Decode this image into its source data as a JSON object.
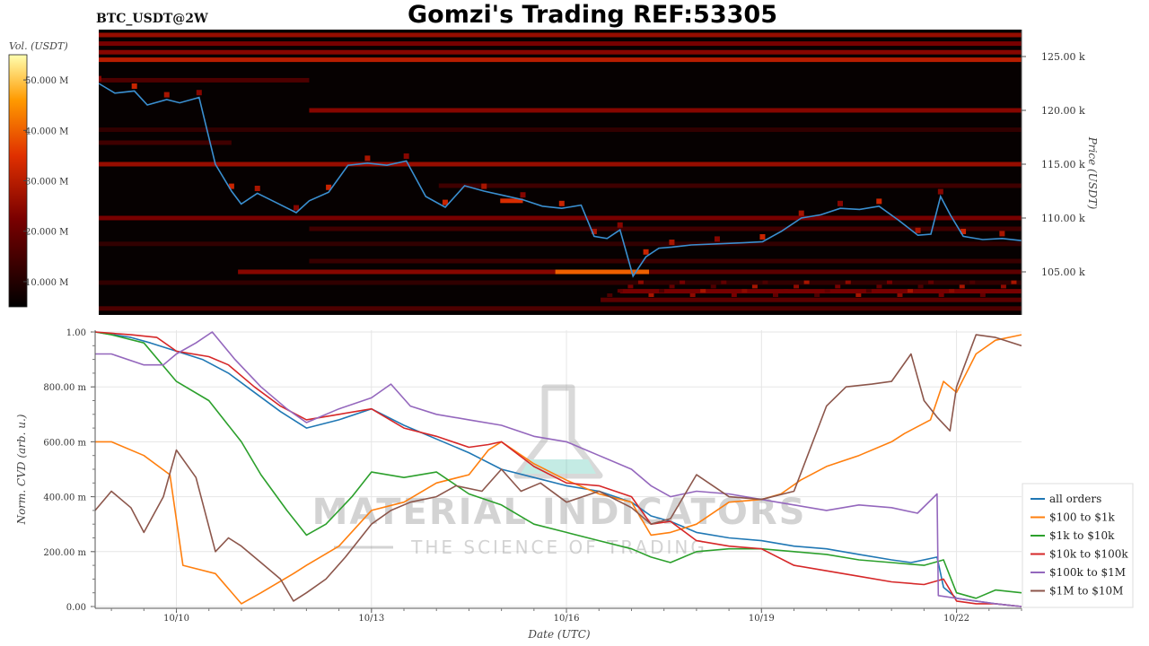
{
  "header": {
    "symbol": "BTC_USDT@2W",
    "title": "Gomzi's Trading REF:53305"
  },
  "watermark": {
    "line1": "MATERIAL INDICATORS",
    "line2": "THE SCIENCE OF TRADING"
  },
  "colors": {
    "heatmap_bg": "#060101",
    "price_line": "#3a8fd0",
    "grid": "#e6e6e6"
  },
  "chart_data": [
    {
      "type": "heatmap",
      "colorbar": {
        "label": "Vol. (USDT)",
        "ticks": [
          "50.000 M",
          "40.000 M",
          "30.000 M",
          "20.000 M",
          "10.000 M"
        ],
        "tick_values": [
          50,
          40,
          30,
          20,
          10
        ],
        "range": [
          5,
          55
        ]
      },
      "yaxis": {
        "label": "Price (USDT)",
        "side": "right",
        "range": [
          101000,
          127500
        ],
        "ticks": [
          "125.00 k",
          "120.00 k",
          "115.00 k",
          "110.00 k",
          "105.00 k"
        ],
        "tick_values": [
          125000,
          120000,
          115000,
          110000,
          105000
        ]
      },
      "xrange_days": [
        8.75,
        23.0
      ],
      "price_series": {
        "name": "BTC price",
        "x": [
          8.75,
          9.0,
          9.3,
          9.5,
          9.8,
          10.0,
          10.3,
          10.55,
          10.8,
          10.95,
          11.2,
          11.5,
          11.8,
          12.0,
          12.3,
          12.6,
          12.9,
          13.2,
          13.5,
          13.8,
          14.1,
          14.4,
          14.7,
          15.0,
          15.3,
          15.6,
          15.9,
          16.2,
          16.4,
          16.6,
          16.8,
          17.0,
          17.2,
          17.4,
          17.6,
          17.9,
          18.3,
          18.7,
          19.0,
          19.3,
          19.6,
          19.9,
          20.2,
          20.5,
          20.8,
          21.1,
          21.4,
          21.6,
          21.75,
          21.9,
          22.1,
          22.4,
          22.7,
          23.0
        ],
        "y": [
          122500,
          121600,
          121800,
          120500,
          121000,
          120700,
          121200,
          115000,
          112500,
          111300,
          112300,
          111400,
          110500,
          111600,
          112400,
          114900,
          115100,
          114900,
          115300,
          112000,
          111000,
          113000,
          112500,
          112100,
          111700,
          111100,
          110900,
          111200,
          108300,
          108100,
          108900,
          104600,
          106400,
          107200,
          107300,
          107500,
          107600,
          107700,
          107800,
          108800,
          110000,
          110300,
          110900,
          110800,
          111100,
          109800,
          108400,
          108500,
          112000,
          110300,
          108300,
          108000,
          108100,
          107900
        ]
      },
      "liquidity_bands": [
        {
          "price": 127000,
          "x0": 8.75,
          "x1": 23.0,
          "intensity": 26
        },
        {
          "price": 126200,
          "x0": 8.75,
          "x1": 23.0,
          "intensity": 22
        },
        {
          "price": 125400,
          "x0": 8.75,
          "x1": 23.0,
          "intensity": 24
        },
        {
          "price": 124700,
          "x0": 8.75,
          "x1": 23.0,
          "intensity": 30
        },
        {
          "price": 122800,
          "x0": 8.75,
          "x1": 12.0,
          "intensity": 16
        },
        {
          "price": 120000,
          "x0": 12.0,
          "x1": 23.0,
          "intensity": 24
        },
        {
          "price": 118200,
          "x0": 8.75,
          "x1": 23.0,
          "intensity": 12
        },
        {
          "price": 117000,
          "x0": 8.75,
          "x1": 10.8,
          "intensity": 14
        },
        {
          "price": 115000,
          "x0": 8.75,
          "x1": 23.0,
          "intensity": 26
        },
        {
          "price": 113000,
          "x0": 14.0,
          "x1": 23.0,
          "intensity": 14
        },
        {
          "price": 110000,
          "x0": 8.75,
          "x1": 23.0,
          "intensity": 22
        },
        {
          "price": 109000,
          "x0": 12.0,
          "x1": 23.0,
          "intensity": 14
        },
        {
          "price": 107600,
          "x0": 8.75,
          "x1": 23.0,
          "intensity": 12
        },
        {
          "price": 106000,
          "x0": 12.0,
          "x1": 23.0,
          "intensity": 13
        },
        {
          "price": 105000,
          "x0": 10.9,
          "x1": 15.8,
          "intensity": 24
        },
        {
          "price": 105000,
          "x0": 15.8,
          "x1": 17.25,
          "intensity": 40
        },
        {
          "price": 105000,
          "x0": 17.25,
          "x1": 23.0,
          "intensity": 18
        },
        {
          "price": 104000,
          "x0": 8.75,
          "x1": 23.0,
          "intensity": 12
        },
        {
          "price": 103200,
          "x0": 16.8,
          "x1": 23.0,
          "intensity": 22
        },
        {
          "price": 102400,
          "x0": 16.5,
          "x1": 23.0,
          "intensity": 18
        },
        {
          "price": 101600,
          "x0": 8.75,
          "x1": 23.0,
          "intensity": 16
        },
        {
          "price": 111600,
          "x0": 14.95,
          "x1": 15.3,
          "intensity": 34
        }
      ]
    },
    {
      "type": "line",
      "xlabel": "Date (UTC)",
      "ylabel": "Norm. CVD (arb. u.)",
      "xrange_days": [
        8.75,
        23.0
      ],
      "xticks": [
        "10/10",
        "10/13",
        "10/16",
        "10/19",
        "10/22"
      ],
      "xtick_values": [
        10,
        13,
        16,
        19,
        22
      ],
      "ylim": [
        0,
        1
      ],
      "yticks": [
        "1.00",
        "800.00 m",
        "600.00 m",
        "400.00 m",
        "200.00 m",
        "0.00"
      ],
      "ytick_values": [
        1.0,
        0.8,
        0.6,
        0.4,
        0.2,
        0.0
      ],
      "grid": true,
      "legend_position": "right",
      "series": [
        {
          "name": "all orders",
          "color": "#1f77b4",
          "x": [
            8.75,
            9.3,
            9.6,
            10.0,
            10.4,
            10.8,
            11.2,
            11.6,
            12.0,
            12.5,
            13.0,
            13.5,
            14.0,
            14.5,
            15.0,
            15.5,
            16.0,
            16.5,
            17.0,
            17.3,
            17.6,
            18.0,
            18.5,
            19.0,
            19.5,
            20.0,
            20.5,
            21.0,
            21.3,
            21.7,
            21.8,
            22.0,
            22.3,
            22.6,
            23.0
          ],
          "y": [
            1.0,
            0.98,
            0.96,
            0.93,
            0.9,
            0.85,
            0.78,
            0.71,
            0.65,
            0.68,
            0.72,
            0.66,
            0.61,
            0.56,
            0.5,
            0.47,
            0.44,
            0.42,
            0.38,
            0.33,
            0.31,
            0.27,
            0.25,
            0.24,
            0.22,
            0.21,
            0.19,
            0.17,
            0.16,
            0.18,
            0.07,
            0.03,
            0.02,
            0.01,
            0.0
          ]
        },
        {
          "name": "$100 to $1k",
          "color": "#ff7f0e",
          "x": [
            8.75,
            9.0,
            9.5,
            9.9,
            10.1,
            10.6,
            11.0,
            11.3,
            11.8,
            12.0,
            12.5,
            13.0,
            13.5,
            14.0,
            14.5,
            14.8,
            15.0,
            15.5,
            16.0,
            16.5,
            17.0,
            17.3,
            17.6,
            18.0,
            18.5,
            19.0,
            19.3,
            19.6,
            20.0,
            20.5,
            21.0,
            21.2,
            21.6,
            21.8,
            22.0,
            22.3,
            22.6,
            23.0
          ],
          "y": [
            0.6,
            0.6,
            0.55,
            0.48,
            0.15,
            0.12,
            0.01,
            0.05,
            0.12,
            0.15,
            0.22,
            0.35,
            0.38,
            0.45,
            0.48,
            0.57,
            0.6,
            0.52,
            0.46,
            0.41,
            0.38,
            0.26,
            0.27,
            0.3,
            0.38,
            0.39,
            0.41,
            0.46,
            0.51,
            0.55,
            0.6,
            0.63,
            0.68,
            0.82,
            0.78,
            0.92,
            0.97,
            0.99
          ]
        },
        {
          "name": "$1k to $10k",
          "color": "#2ca02c",
          "x": [
            8.75,
            9.0,
            9.5,
            10.0,
            10.5,
            11.0,
            11.3,
            11.7,
            12.0,
            12.3,
            12.7,
            13.0,
            13.5,
            14.0,
            14.5,
            15.0,
            15.5,
            16.0,
            16.5,
            17.0,
            17.3,
            17.6,
            18.0,
            18.5,
            19.0,
            19.5,
            20.0,
            20.5,
            21.0,
            21.5,
            21.8,
            22.0,
            22.3,
            22.6,
            23.0
          ],
          "y": [
            1.0,
            0.99,
            0.96,
            0.82,
            0.75,
            0.6,
            0.48,
            0.35,
            0.26,
            0.3,
            0.4,
            0.49,
            0.47,
            0.49,
            0.41,
            0.37,
            0.3,
            0.27,
            0.24,
            0.21,
            0.18,
            0.16,
            0.2,
            0.21,
            0.21,
            0.2,
            0.19,
            0.17,
            0.16,
            0.15,
            0.17,
            0.05,
            0.03,
            0.06,
            0.05
          ]
        },
        {
          "name": "$10k to $100k",
          "color": "#d62728",
          "x": [
            8.75,
            9.3,
            9.7,
            10.0,
            10.5,
            10.8,
            11.2,
            11.6,
            12.0,
            12.5,
            13.0,
            13.5,
            14.0,
            14.5,
            14.8,
            15.0,
            15.5,
            16.0,
            16.5,
            17.0,
            17.3,
            17.6,
            18.0,
            18.5,
            19.0,
            19.5,
            20.0,
            20.5,
            21.0,
            21.5,
            21.8,
            22.0,
            22.3,
            22.6,
            23.0
          ],
          "y": [
            1.0,
            0.99,
            0.98,
            0.93,
            0.91,
            0.88,
            0.8,
            0.73,
            0.68,
            0.7,
            0.72,
            0.65,
            0.62,
            0.58,
            0.59,
            0.6,
            0.51,
            0.45,
            0.44,
            0.4,
            0.3,
            0.31,
            0.24,
            0.22,
            0.21,
            0.15,
            0.13,
            0.11,
            0.09,
            0.08,
            0.1,
            0.02,
            0.01,
            0.01,
            0.0
          ]
        },
        {
          "name": "$100k to $1M",
          "color": "#9467bd",
          "x": [
            8.75,
            9.0,
            9.5,
            9.8,
            10.0,
            10.3,
            10.55,
            10.9,
            11.3,
            11.7,
            12.0,
            12.5,
            13.0,
            13.3,
            13.6,
            14.0,
            14.5,
            15.0,
            15.5,
            16.0,
            16.5,
            17.0,
            17.3,
            17.6,
            18.0,
            18.5,
            19.0,
            19.5,
            20.0,
            20.5,
            21.0,
            21.4,
            21.7,
            21.72,
            22.0,
            22.3,
            22.6,
            23.0
          ],
          "y": [
            0.92,
            0.92,
            0.88,
            0.88,
            0.92,
            0.96,
            1.0,
            0.9,
            0.8,
            0.72,
            0.67,
            0.72,
            0.76,
            0.81,
            0.73,
            0.7,
            0.68,
            0.66,
            0.62,
            0.6,
            0.55,
            0.5,
            0.44,
            0.4,
            0.42,
            0.41,
            0.39,
            0.37,
            0.35,
            0.37,
            0.36,
            0.34,
            0.41,
            0.04,
            0.03,
            0.02,
            0.01,
            0.0
          ]
        },
        {
          "name": "$1M to $10M",
          "color": "#8c564b",
          "x": [
            8.75,
            9.0,
            9.3,
            9.5,
            9.8,
            10.0,
            10.3,
            10.6,
            10.8,
            11.0,
            11.3,
            11.6,
            11.8,
            12.0,
            12.3,
            12.6,
            13.0,
            13.3,
            13.6,
            14.0,
            14.3,
            14.7,
            15.0,
            15.3,
            15.6,
            16.0,
            16.5,
            17.0,
            17.3,
            17.6,
            18.0,
            18.5,
            19.0,
            19.5,
            20.0,
            20.3,
            20.7,
            21.0,
            21.3,
            21.5,
            21.7,
            21.9,
            22.0,
            22.3,
            22.6,
            23.0
          ],
          "y": [
            0.35,
            0.42,
            0.36,
            0.27,
            0.4,
            0.57,
            0.47,
            0.2,
            0.25,
            0.22,
            0.16,
            0.1,
            0.02,
            0.05,
            0.1,
            0.18,
            0.3,
            0.35,
            0.38,
            0.4,
            0.44,
            0.42,
            0.5,
            0.42,
            0.45,
            0.38,
            0.42,
            0.36,
            0.3,
            0.32,
            0.48,
            0.4,
            0.39,
            0.42,
            0.73,
            0.8,
            0.81,
            0.82,
            0.92,
            0.75,
            0.69,
            0.64,
            0.8,
            0.99,
            0.98,
            0.95
          ]
        }
      ]
    }
  ]
}
